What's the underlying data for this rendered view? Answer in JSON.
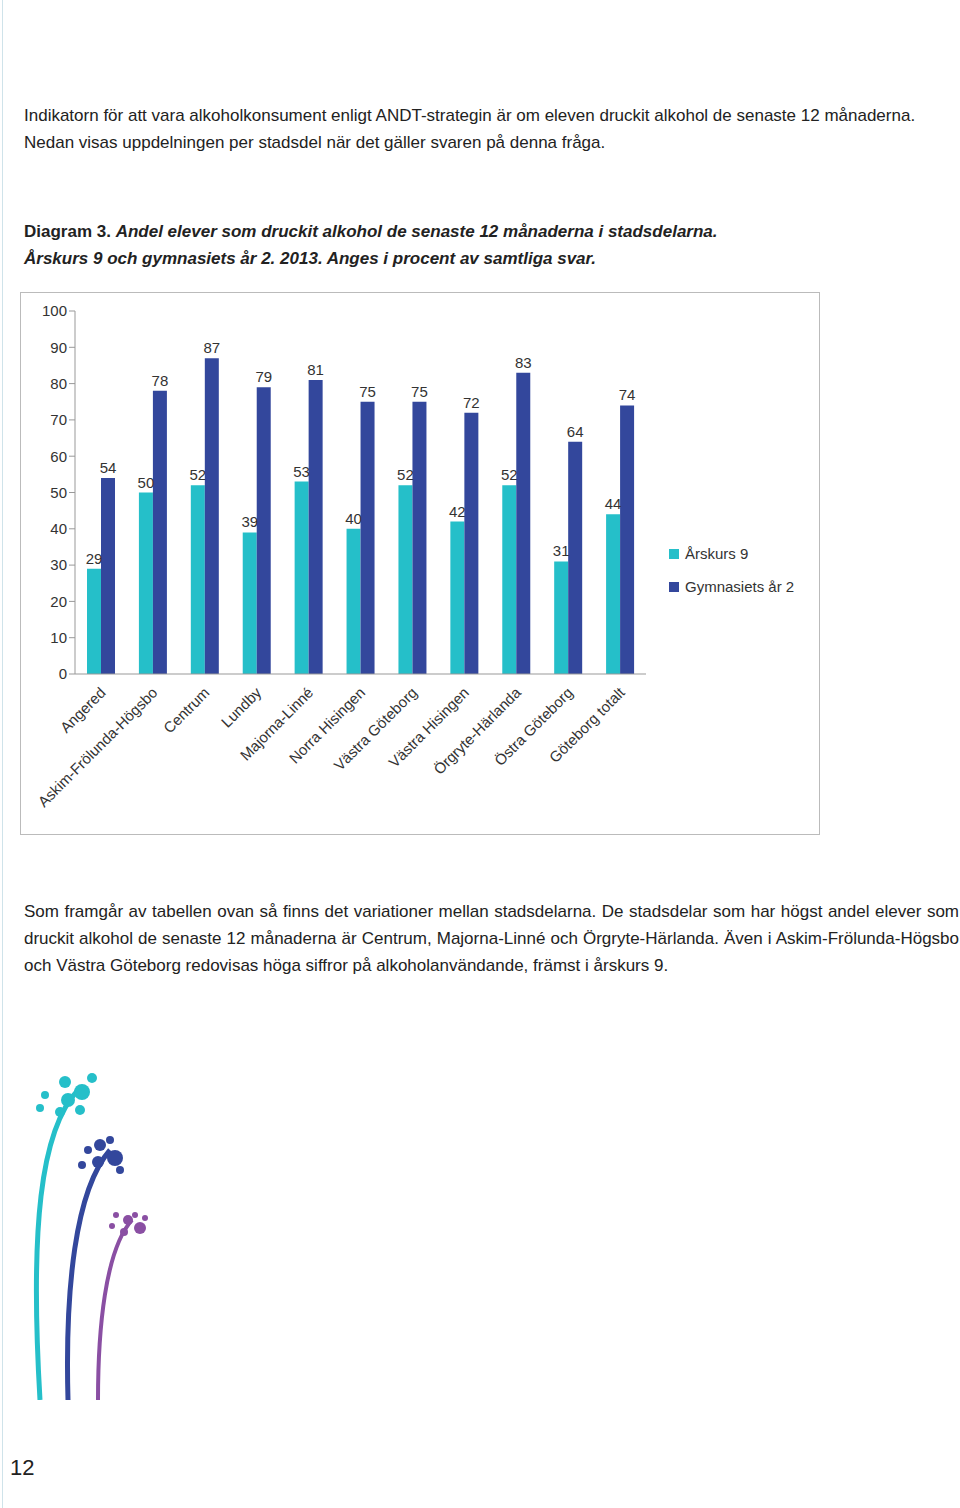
{
  "intro": "Indikatorn för att vara alkoholkonsument enligt ANDT-strategin är om eleven druckit alkohol de senaste 12 månaderna. Nedan visas uppdelningen per stadsdel när det gäller svaren på denna fråga.",
  "caption_label": "Diagram 3.",
  "caption_lines": [
    "Andel elever som druckit alkohol de senaste 12 månaderna i stadsdelarna.",
    "Årskurs 9 och gymnasiets år 2. 2013. Anges i procent av samtliga svar."
  ],
  "chart_data": {
    "type": "bar",
    "categories": [
      "Angered",
      "Askim-Frölunda-Högsbo",
      "Centrum",
      "Lundby",
      "Majorna-Linné",
      "Norra Hisingen",
      "Västra Göteborg",
      "Västra Hisingen",
      "Örgryte-Härlanda",
      "Östra Göteborg",
      "Göteborg totalt"
    ],
    "series": [
      {
        "name": "Årskurs 9",
        "color": "#25bfc9",
        "values": [
          29,
          50,
          52,
          39,
          53,
          40,
          52,
          42,
          52,
          31,
          44
        ]
      },
      {
        "name": "Gymnasiets år 2",
        "color": "#33479c",
        "values": [
          54,
          78,
          87,
          79,
          81,
          75,
          75,
          72,
          83,
          64,
          74
        ]
      }
    ],
    "ylim": [
      0,
      100
    ],
    "yticks": [
      0,
      10,
      20,
      30,
      40,
      50,
      60,
      70,
      80,
      90,
      100
    ],
    "grid": false,
    "legend": "right",
    "data_labels": true
  },
  "conclusion": "Som framgår av tabellen ovan så finns det variationer mellan stadsdelarna. De stadsdelar som har högst andel elever som druckit alkohol de senaste 12 månaderna är Centrum, Majorna-Linné och Örgryte-Härlanda. Även i Askim-Frölunda-Högsbo och Västra Göteborg redovisas höga siffror på alkoholanvändande, främst i årskurs 9.",
  "page_number": 12
}
